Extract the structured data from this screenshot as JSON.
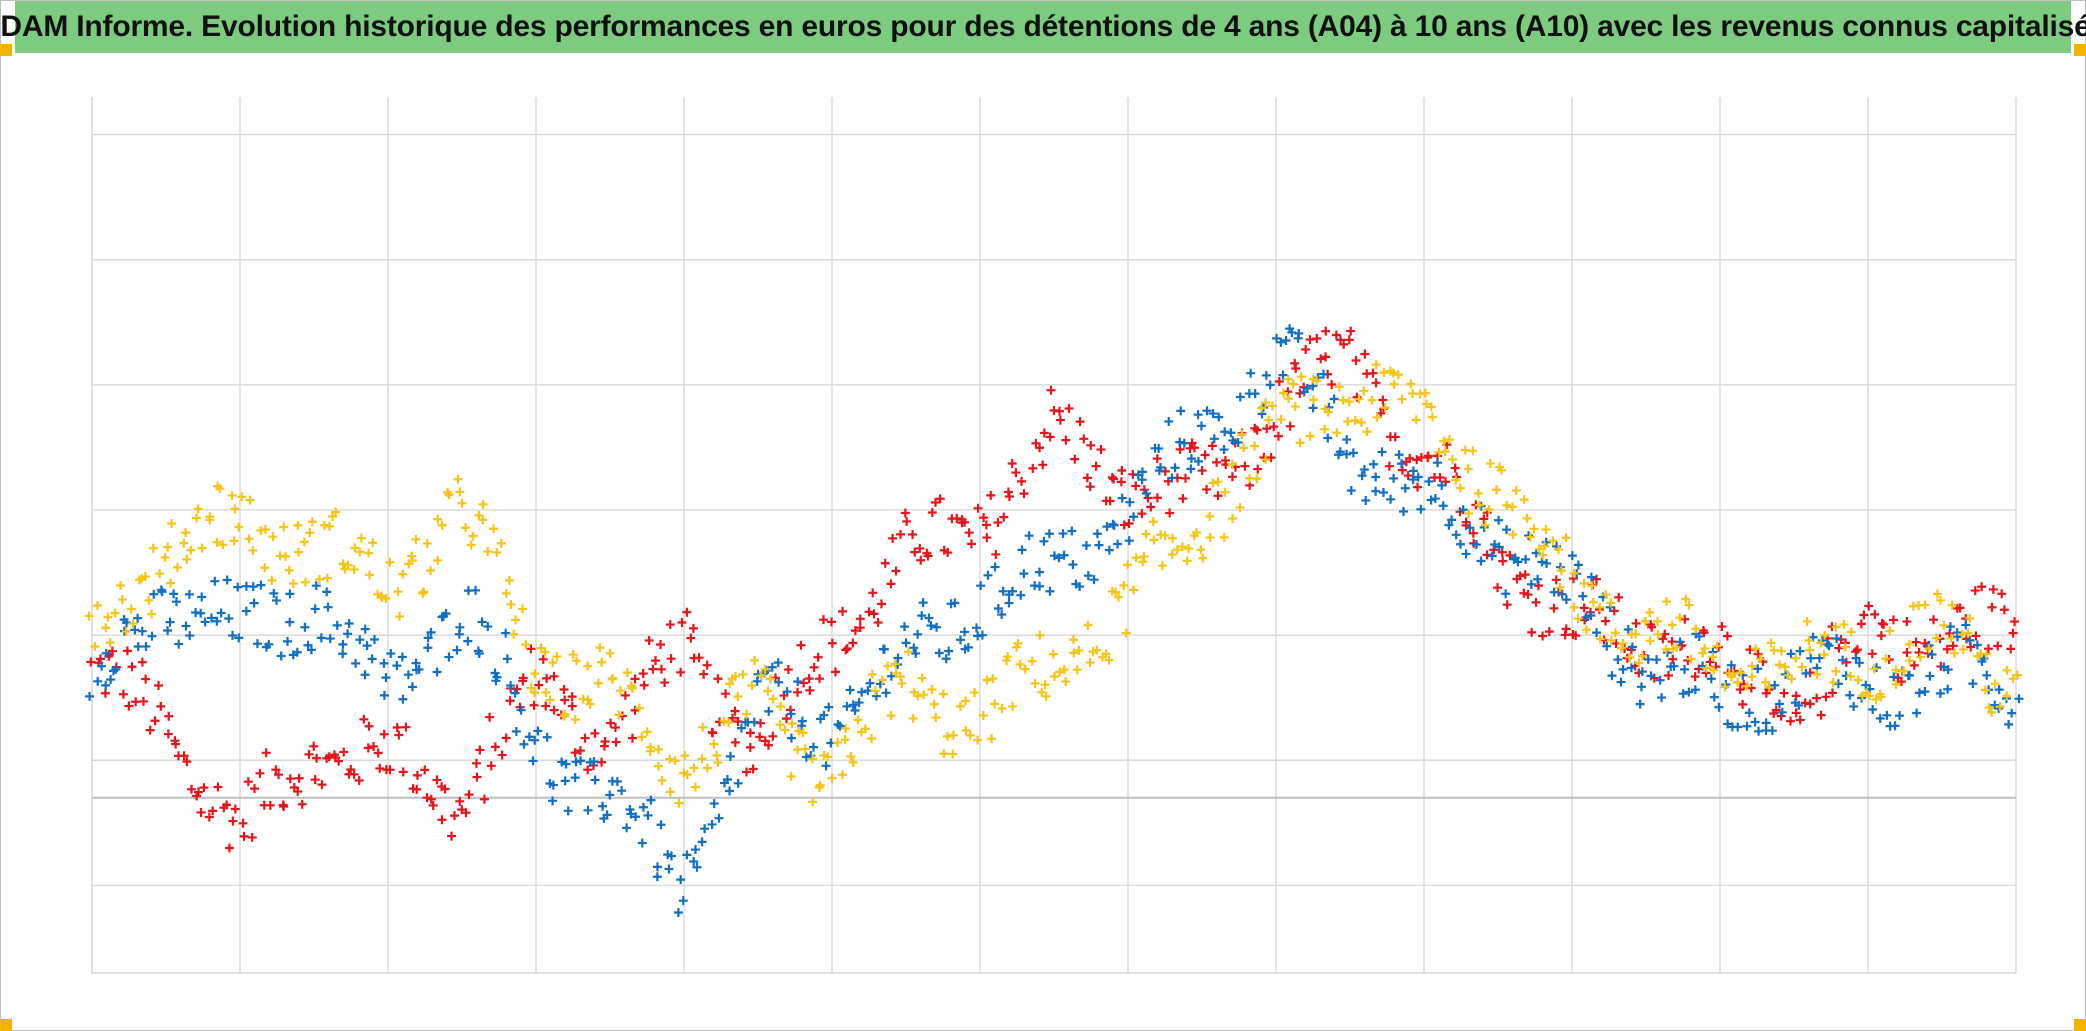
{
  "title": "ADAM Informe. Evolution historique des performances en euros pour des détentions de 4 ans (A04) à 10 ans (A10) avec les revenus connus capitalisés",
  "colors": {
    "title_background": "#7dcb7f",
    "corner_marks": "#f2b400",
    "grid": "#d9d9d9"
  },
  "chart_data": {
    "type": "scatter",
    "marker": "plus",
    "xlabel": "",
    "ylabel": "",
    "x_tick_labels": [],
    "y_tick_labels": [],
    "grid": true,
    "legend": "none",
    "x": [
      0,
      0.5,
      1,
      1.5,
      2,
      2.5,
      3,
      3.5,
      4,
      4.5,
      5,
      5.5,
      6,
      6.5,
      7,
      7.5,
      8,
      8.5,
      9,
      9.5,
      10,
      10.5,
      11,
      11.5,
      12,
      12.5,
      13
    ],
    "xlim": [
      0,
      13
    ],
    "ylim": [
      -1.7,
      5.3
    ],
    "y_gridlines": [
      -1,
      -0.3,
      0,
      1,
      2,
      3,
      4,
      5
    ],
    "series": [
      {
        "color": "#e8141c",
        "values": [
          0.7,
          0.3,
          -0.6,
          0.1,
          0.0,
          -0.3,
          0.6,
          0.2,
          0.9,
          0.1,
          1.0,
          1.6,
          1.9,
          2.6,
          2.2,
          2.1,
          2.8,
          3.2,
          2.4,
          1.7,
          1.1,
          1.0,
          0.8,
          0.4,
          1.0,
          1.0,
          1.0
        ]
      },
      {
        "color": "#1170c4",
        "values": [
          0.6,
          1.3,
          1.0,
          1.3,
          0.5,
          1.3,
          0.1,
          -0.3,
          -1.0,
          0.4,
          0.3,
          0.8,
          1.3,
          1.5,
          2.0,
          2.6,
          3.2,
          2.5,
          2.1,
          1.8,
          1.3,
          0.8,
          0.5,
          0.7,
          0.6,
          0.7,
          0.6
        ]
      },
      {
        "color": "#f5c518",
        "values": [
          1.0,
          1.7,
          1.9,
          1.7,
          1.4,
          2.0,
          0.8,
          0.5,
          0.0,
          0.4,
          -0.1,
          0.6,
          0.3,
          0.8,
          1.2,
          2.0,
          2.6,
          3.0,
          2.7,
          2.2,
          1.4,
          1.0,
          0.8,
          0.7,
          0.9,
          1.0,
          0.6
        ]
      }
    ]
  }
}
